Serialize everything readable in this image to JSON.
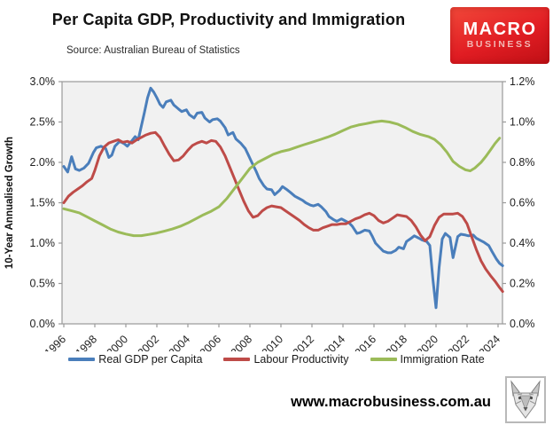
{
  "header": {
    "title": "Per Capita GDP, Productivity and Immigration",
    "subtitle": "Source: Australian Bureau of Statistics",
    "logo": {
      "line1": "MACRO",
      "line2": "BUSINESS",
      "bg_color": "#e11d23"
    }
  },
  "footer": {
    "url": "www.macrobusiness.com.au",
    "wolf_logo": "wolf-sketch"
  },
  "chart_data": {
    "type": "line",
    "title": "Per Capita GDP, Productivity and Immigration",
    "ylabel_left": "10-Year Annualised Growth",
    "plot_bg": "#f1f1f1",
    "axis_color": "#999999",
    "tick_text_color": "#1f1f1f",
    "x_ticks": [
      1996,
      1998,
      2000,
      2002,
      2004,
      2006,
      2008,
      2010,
      2012,
      2014,
      2016,
      2018,
      2020,
      2022,
      2024
    ],
    "left_axis": {
      "min": 0.0,
      "max": 3.0,
      "tick_labels": [
        "3.0%",
        "2.5%",
        "2.0%",
        "1.5%",
        "1.0%",
        "0.5%",
        "0.0%"
      ]
    },
    "right_axis": {
      "min": 0.0,
      "max": 1.2,
      "tick_labels": [
        "1.2%",
        "1.0%",
        "0.8%",
        "0.6%",
        "0.4%",
        "0.2%",
        "0.0%"
      ]
    },
    "legend_position": "bottom",
    "series": [
      {
        "name": "Real GDP per Capita",
        "color": "#4a7ebb",
        "axis": "left",
        "points": [
          [
            1996.0,
            1.95
          ],
          [
            1996.25,
            1.88
          ],
          [
            1996.5,
            2.07
          ],
          [
            1996.75,
            1.92
          ],
          [
            1997.0,
            1.9
          ],
          [
            1997.3,
            1.93
          ],
          [
            1997.6,
            1.99
          ],
          [
            1997.9,
            2.12
          ],
          [
            1998.1,
            2.18
          ],
          [
            1998.4,
            2.2
          ],
          [
            1998.7,
            2.17
          ],
          [
            1998.9,
            2.06
          ],
          [
            1999.1,
            2.09
          ],
          [
            1999.3,
            2.2
          ],
          [
            1999.6,
            2.26
          ],
          [
            1999.9,
            2.23
          ],
          [
            2000.1,
            2.2
          ],
          [
            2000.4,
            2.27
          ],
          [
            2000.6,
            2.32
          ],
          [
            2000.8,
            2.28
          ],
          [
            2001.0,
            2.45
          ],
          [
            2001.2,
            2.62
          ],
          [
            2001.4,
            2.8
          ],
          [
            2001.6,
            2.92
          ],
          [
            2001.8,
            2.87
          ],
          [
            2002.0,
            2.8
          ],
          [
            2002.2,
            2.72
          ],
          [
            2002.4,
            2.68
          ],
          [
            2002.6,
            2.75
          ],
          [
            2002.9,
            2.77
          ],
          [
            2003.1,
            2.71
          ],
          [
            2003.4,
            2.66
          ],
          [
            2003.6,
            2.63
          ],
          [
            2003.9,
            2.65
          ],
          [
            2004.1,
            2.59
          ],
          [
            2004.4,
            2.55
          ],
          [
            2004.6,
            2.61
          ],
          [
            2004.9,
            2.62
          ],
          [
            2005.1,
            2.55
          ],
          [
            2005.4,
            2.5
          ],
          [
            2005.6,
            2.53
          ],
          [
            2005.9,
            2.54
          ],
          [
            2006.1,
            2.51
          ],
          [
            2006.4,
            2.43
          ],
          [
            2006.6,
            2.34
          ],
          [
            2006.9,
            2.37
          ],
          [
            2007.1,
            2.29
          ],
          [
            2007.4,
            2.24
          ],
          [
            2007.7,
            2.17
          ],
          [
            2007.9,
            2.09
          ],
          [
            2008.1,
            2.01
          ],
          [
            2008.4,
            1.89
          ],
          [
            2008.6,
            1.8
          ],
          [
            2008.9,
            1.71
          ],
          [
            2009.1,
            1.67
          ],
          [
            2009.4,
            1.66
          ],
          [
            2009.6,
            1.6
          ],
          [
            2009.9,
            1.65
          ],
          [
            2010.1,
            1.7
          ],
          [
            2010.4,
            1.66
          ],
          [
            2010.6,
            1.63
          ],
          [
            2010.9,
            1.58
          ],
          [
            2011.1,
            1.56
          ],
          [
            2011.4,
            1.53
          ],
          [
            2011.6,
            1.5
          ],
          [
            2011.9,
            1.47
          ],
          [
            2012.1,
            1.46
          ],
          [
            2012.4,
            1.48
          ],
          [
            2012.6,
            1.45
          ],
          [
            2012.9,
            1.39
          ],
          [
            2013.1,
            1.33
          ],
          [
            2013.4,
            1.29
          ],
          [
            2013.6,
            1.27
          ],
          [
            2013.9,
            1.3
          ],
          [
            2014.1,
            1.28
          ],
          [
            2014.4,
            1.25
          ],
          [
            2014.6,
            1.21
          ],
          [
            2014.9,
            1.12
          ],
          [
            2015.1,
            1.13
          ],
          [
            2015.4,
            1.16
          ],
          [
            2015.7,
            1.15
          ],
          [
            2015.9,
            1.08
          ],
          [
            2016.1,
            1.0
          ],
          [
            2016.4,
            0.94
          ],
          [
            2016.6,
            0.9
          ],
          [
            2016.9,
            0.88
          ],
          [
            2017.1,
            0.88
          ],
          [
            2017.4,
            0.91
          ],
          [
            2017.6,
            0.95
          ],
          [
            2017.9,
            0.93
          ],
          [
            2018.1,
            1.02
          ],
          [
            2018.4,
            1.06
          ],
          [
            2018.6,
            1.09
          ],
          [
            2018.9,
            1.06
          ],
          [
            2019.1,
            1.04
          ],
          [
            2019.4,
            1.02
          ],
          [
            2019.6,
            0.97
          ],
          [
            2019.8,
            0.55
          ],
          [
            2020.0,
            0.2
          ],
          [
            2020.2,
            0.7
          ],
          [
            2020.4,
            1.05
          ],
          [
            2020.6,
            1.12
          ],
          [
            2020.9,
            1.07
          ],
          [
            2021.1,
            0.82
          ],
          [
            2021.4,
            1.08
          ],
          [
            2021.6,
            1.11
          ],
          [
            2021.9,
            1.1
          ],
          [
            2022.1,
            1.09
          ],
          [
            2022.4,
            1.1
          ],
          [
            2022.6,
            1.06
          ],
          [
            2022.9,
            1.03
          ],
          [
            2023.1,
            1.01
          ],
          [
            2023.4,
            0.97
          ],
          [
            2023.6,
            0.9
          ],
          [
            2023.9,
            0.8
          ],
          [
            2024.1,
            0.75
          ],
          [
            2024.3,
            0.72
          ]
        ]
      },
      {
        "name": "Labour Productivity",
        "color": "#be4b48",
        "axis": "left",
        "points": [
          [
            1996.0,
            1.5
          ],
          [
            1996.3,
            1.58
          ],
          [
            1996.6,
            1.63
          ],
          [
            1996.9,
            1.67
          ],
          [
            1997.2,
            1.71
          ],
          [
            1997.5,
            1.76
          ],
          [
            1997.8,
            1.8
          ],
          [
            1998.0,
            1.9
          ],
          [
            1998.3,
            2.08
          ],
          [
            1998.6,
            2.19
          ],
          [
            1998.9,
            2.24
          ],
          [
            1999.2,
            2.26
          ],
          [
            1999.5,
            2.28
          ],
          [
            1999.8,
            2.25
          ],
          [
            2000.1,
            2.26
          ],
          [
            2000.4,
            2.24
          ],
          [
            2000.7,
            2.28
          ],
          [
            2001.0,
            2.31
          ],
          [
            2001.3,
            2.34
          ],
          [
            2001.6,
            2.36
          ],
          [
            2001.9,
            2.37
          ],
          [
            2002.2,
            2.31
          ],
          [
            2002.5,
            2.2
          ],
          [
            2002.8,
            2.1
          ],
          [
            2003.1,
            2.02
          ],
          [
            2003.4,
            2.03
          ],
          [
            2003.7,
            2.08
          ],
          [
            2004.0,
            2.15
          ],
          [
            2004.3,
            2.21
          ],
          [
            2004.6,
            2.24
          ],
          [
            2004.9,
            2.26
          ],
          [
            2005.2,
            2.24
          ],
          [
            2005.5,
            2.27
          ],
          [
            2005.8,
            2.26
          ],
          [
            2006.1,
            2.19
          ],
          [
            2006.4,
            2.08
          ],
          [
            2006.7,
            1.94
          ],
          [
            2007.0,
            1.8
          ],
          [
            2007.3,
            1.66
          ],
          [
            2007.6,
            1.52
          ],
          [
            2007.9,
            1.4
          ],
          [
            2008.2,
            1.32
          ],
          [
            2008.5,
            1.34
          ],
          [
            2008.8,
            1.4
          ],
          [
            2009.1,
            1.44
          ],
          [
            2009.4,
            1.46
          ],
          [
            2009.7,
            1.45
          ],
          [
            2010.0,
            1.44
          ],
          [
            2010.3,
            1.4
          ],
          [
            2010.6,
            1.36
          ],
          [
            2010.9,
            1.32
          ],
          [
            2011.2,
            1.28
          ],
          [
            2011.5,
            1.23
          ],
          [
            2011.8,
            1.19
          ],
          [
            2012.1,
            1.16
          ],
          [
            2012.4,
            1.16
          ],
          [
            2012.7,
            1.19
          ],
          [
            2013.0,
            1.21
          ],
          [
            2013.3,
            1.23
          ],
          [
            2013.6,
            1.23
          ],
          [
            2013.9,
            1.24
          ],
          [
            2014.2,
            1.24
          ],
          [
            2014.5,
            1.27
          ],
          [
            2014.8,
            1.3
          ],
          [
            2015.1,
            1.32
          ],
          [
            2015.4,
            1.35
          ],
          [
            2015.7,
            1.37
          ],
          [
            2016.0,
            1.34
          ],
          [
            2016.3,
            1.28
          ],
          [
            2016.6,
            1.25
          ],
          [
            2016.9,
            1.27
          ],
          [
            2017.2,
            1.31
          ],
          [
            2017.5,
            1.35
          ],
          [
            2017.8,
            1.34
          ],
          [
            2018.1,
            1.33
          ],
          [
            2018.4,
            1.28
          ],
          [
            2018.7,
            1.2
          ],
          [
            2019.0,
            1.1
          ],
          [
            2019.3,
            1.03
          ],
          [
            2019.6,
            1.08
          ],
          [
            2019.9,
            1.22
          ],
          [
            2020.2,
            1.32
          ],
          [
            2020.5,
            1.36
          ],
          [
            2020.8,
            1.36
          ],
          [
            2021.1,
            1.36
          ],
          [
            2021.4,
            1.37
          ],
          [
            2021.7,
            1.33
          ],
          [
            2022.0,
            1.24
          ],
          [
            2022.3,
            1.08
          ],
          [
            2022.6,
            0.92
          ],
          [
            2022.9,
            0.78
          ],
          [
            2023.2,
            0.68
          ],
          [
            2023.5,
            0.6
          ],
          [
            2023.8,
            0.53
          ],
          [
            2024.1,
            0.45
          ],
          [
            2024.3,
            0.4
          ]
        ]
      },
      {
        "name": "Immigration Rate",
        "color": "#9bbb59",
        "axis": "right",
        "points": [
          [
            1996.0,
            0.57
          ],
          [
            1996.5,
            0.56
          ],
          [
            1997.0,
            0.55
          ],
          [
            1997.5,
            0.53
          ],
          [
            1998.0,
            0.51
          ],
          [
            1998.5,
            0.49
          ],
          [
            1999.0,
            0.47
          ],
          [
            1999.5,
            0.455
          ],
          [
            2000.0,
            0.445
          ],
          [
            2000.5,
            0.437
          ],
          [
            2001.0,
            0.437
          ],
          [
            2001.5,
            0.443
          ],
          [
            2002.0,
            0.45
          ],
          [
            2002.5,
            0.46
          ],
          [
            2003.0,
            0.47
          ],
          [
            2003.5,
            0.483
          ],
          [
            2004.0,
            0.5
          ],
          [
            2004.5,
            0.52
          ],
          [
            2005.0,
            0.54
          ],
          [
            2005.5,
            0.558
          ],
          [
            2006.0,
            0.58
          ],
          [
            2006.5,
            0.62
          ],
          [
            2007.0,
            0.67
          ],
          [
            2007.5,
            0.72
          ],
          [
            2008.0,
            0.77
          ],
          [
            2008.5,
            0.8
          ],
          [
            2009.0,
            0.82
          ],
          [
            2009.5,
            0.84
          ],
          [
            2010.0,
            0.853
          ],
          [
            2010.5,
            0.862
          ],
          [
            2011.0,
            0.875
          ],
          [
            2011.5,
            0.888
          ],
          [
            2012.0,
            0.9
          ],
          [
            2012.5,
            0.912
          ],
          [
            2013.0,
            0.925
          ],
          [
            2013.5,
            0.94
          ],
          [
            2014.0,
            0.958
          ],
          [
            2014.5,
            0.975
          ],
          [
            2015.0,
            0.985
          ],
          [
            2015.5,
            0.992
          ],
          [
            2016.0,
            1.0
          ],
          [
            2016.5,
            1.005
          ],
          [
            2017.0,
            1.0
          ],
          [
            2017.5,
            0.99
          ],
          [
            2018.0,
            0.973
          ],
          [
            2018.5,
            0.953
          ],
          [
            2019.0,
            0.938
          ],
          [
            2019.5,
            0.928
          ],
          [
            2019.9,
            0.914
          ],
          [
            2020.3,
            0.888
          ],
          [
            2020.7,
            0.85
          ],
          [
            2021.1,
            0.805
          ],
          [
            2021.5,
            0.78
          ],
          [
            2021.9,
            0.763
          ],
          [
            2022.2,
            0.758
          ],
          [
            2022.5,
            0.772
          ],
          [
            2022.9,
            0.8
          ],
          [
            2023.2,
            0.828
          ],
          [
            2023.5,
            0.86
          ],
          [
            2023.8,
            0.893
          ],
          [
            2024.1,
            0.92
          ]
        ]
      }
    ]
  }
}
